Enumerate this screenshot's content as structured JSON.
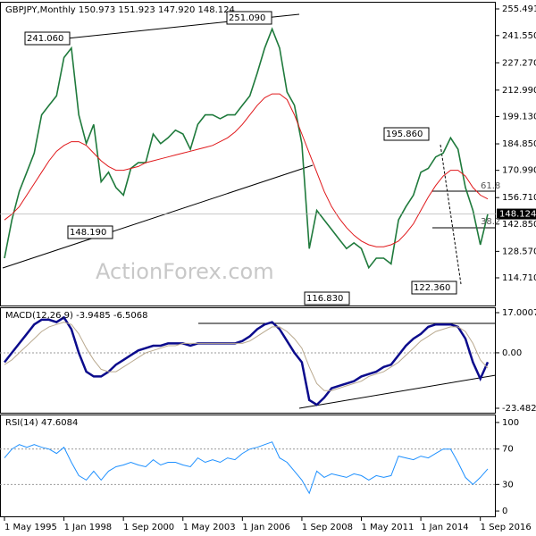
{
  "chart_data": [
    {
      "type": "line",
      "title": "GBPJPY,Monthly  150.973 151.923 147.920 148.124",
      "watermark": "ActionForex.com",
      "annotations": [
        "251.090",
        "241.060",
        "195.860",
        "148.190",
        "116.830",
        "122.360",
        "61.8",
        "38.2"
      ],
      "categories": [
        "1 May 1995",
        null,
        null,
        null,
        null,
        null,
        null,
        null,
        "1 Jan 1998",
        null,
        null,
        null,
        null,
        null,
        null,
        null,
        "1 Sep 2000",
        null,
        null,
        null,
        null,
        null,
        null,
        null,
        "1 May 2003",
        null,
        null,
        null,
        null,
        null,
        null,
        null,
        "1 Jan 2006",
        null,
        null,
        null,
        null,
        null,
        null,
        null,
        "1 Sep 2008",
        null,
        null,
        null,
        null,
        null,
        null,
        null,
        "1 May 2011",
        null,
        null,
        null,
        null,
        null,
        null,
        null,
        "1 Jan 2014",
        null,
        null,
        null,
        null,
        null,
        null,
        null,
        "1 Sep 2016",
        null
      ],
      "series": [
        {
          "name": "GBPJPY",
          "color": "#1f7a3c",
          "values": [
            125,
            145,
            160,
            170,
            180,
            200,
            205,
            210,
            230,
            235,
            200,
            185,
            195,
            165,
            170,
            162,
            158,
            172,
            175,
            175,
            190,
            185,
            188,
            192,
            190,
            182,
            195,
            200,
            200,
            198,
            200,
            200,
            205,
            210,
            222,
            235,
            245,
            235,
            212,
            205,
            185,
            130,
            150,
            145,
            140,
            135,
            130,
            133,
            130,
            120,
            125,
            125,
            122,
            145,
            152,
            158,
            170,
            172,
            178,
            180,
            188,
            182,
            162,
            150,
            132,
            148.124
          ]
        },
        {
          "name": "MA",
          "color": "#e0181b",
          "values": [
            145,
            148,
            152,
            158,
            164,
            170,
            176,
            181,
            184,
            186,
            186,
            184,
            180,
            176,
            173,
            171,
            171,
            172,
            173,
            175,
            176,
            177,
            178,
            179,
            180,
            181,
            182,
            183,
            184,
            186,
            188,
            191,
            195,
            200,
            205,
            209,
            211,
            211,
            208,
            200,
            190,
            180,
            170,
            160,
            152,
            146,
            141,
            137,
            134,
            132,
            131,
            131,
            132,
            134,
            138,
            143,
            150,
            157,
            163,
            168,
            171,
            171,
            168,
            162,
            158,
            156
          ]
        }
      ],
      "ylim": [
        100.21,
        259.23
      ],
      "yticks": [
        255.491,
        {
          "value": 241.55,
          "label": "241.550"
        },
        {
          "value": 227.27,
          "label": "227.270"
        },
        {
          "value": 212.99,
          "label": "212.990"
        },
        {
          "value": 199.13,
          "label": "199.130"
        },
        {
          "value": 184.85,
          "label": "184.850"
        },
        {
          "value": 170.99,
          "label": "170.990"
        },
        {
          "value": 156.71,
          "label": "156.710"
        },
        {
          "value": 142.85,
          "label": "142.850"
        },
        {
          "value": 128.57,
          "label": "128.570"
        },
        {
          "value": 114.71,
          "label": "114.710"
        }
      ],
      "grid": false
    },
    {
      "type": "line",
      "title": "MACD(12,26,9) -3.9485 -6.5068",
      "series": [
        {
          "name": "MACD",
          "color": "#0b0b8c",
          "values": [
            -4,
            0,
            4,
            8,
            12,
            14,
            14,
            13,
            15,
            10,
            0,
            -8,
            -10,
            -10,
            -8,
            -5,
            -3,
            -1,
            1,
            2,
            3,
            3,
            4,
            4,
            4,
            3,
            4,
            4,
            4,
            4,
            4,
            4,
            5,
            7,
            10,
            12,
            13,
            10,
            5,
            0,
            -4,
            -20,
            -22,
            -19,
            -15,
            -14,
            -13,
            -12,
            -10,
            -9,
            -8,
            -6,
            -5,
            -1,
            3,
            6,
            8,
            11,
            12,
            12,
            12,
            11,
            6,
            -4,
            -11,
            -3.9485
          ]
        },
        {
          "name": "Signal",
          "color": "#b9a98f",
          "values": [
            -5,
            -3,
            0,
            3,
            6,
            9,
            11,
            12,
            13,
            12,
            8,
            2,
            -3,
            -7,
            -8,
            -8,
            -6,
            -4,
            -2,
            0,
            1,
            2,
            3,
            3,
            4,
            4,
            4,
            4,
            4,
            4,
            4,
            4,
            4,
            5,
            7,
            9,
            11,
            11,
            9,
            6,
            2,
            -6,
            -13,
            -16,
            -16,
            -15,
            -14,
            -13,
            -12,
            -10,
            -9,
            -8,
            -6,
            -4,
            -1,
            2,
            5,
            7,
            9,
            10,
            11,
            11,
            9,
            4,
            -3,
            -6.5068
          ]
        }
      ],
      "ylim": [
        -25.37,
        19.27
      ],
      "yticks": [
        17.0007,
        {
          "value": 0,
          "label": "0.00"
        },
        -23.4823
      ],
      "grid": true
    },
    {
      "type": "line",
      "title": "RSI(14) 47.6084",
      "series": [
        {
          "name": "RSI",
          "color": "#1e90ff",
          "values": [
            60,
            70,
            75,
            72,
            75,
            72,
            70,
            65,
            72,
            55,
            40,
            35,
            45,
            35,
            45,
            50,
            52,
            55,
            52,
            50,
            58,
            52,
            55,
            55,
            52,
            50,
            60,
            55,
            58,
            55,
            60,
            58,
            65,
            70,
            72,
            75,
            78,
            60,
            55,
            45,
            35,
            20,
            45,
            38,
            42,
            40,
            38,
            42,
            40,
            35,
            40,
            38,
            40,
            62,
            60,
            58,
            62,
            60,
            65,
            70,
            70,
            55,
            38,
            30,
            38,
            47.6084
          ]
        }
      ],
      "ylim": [
        -6,
        109
      ],
      "yticks": [
        100,
        70,
        30,
        0
      ],
      "grid": true
    }
  ]
}
